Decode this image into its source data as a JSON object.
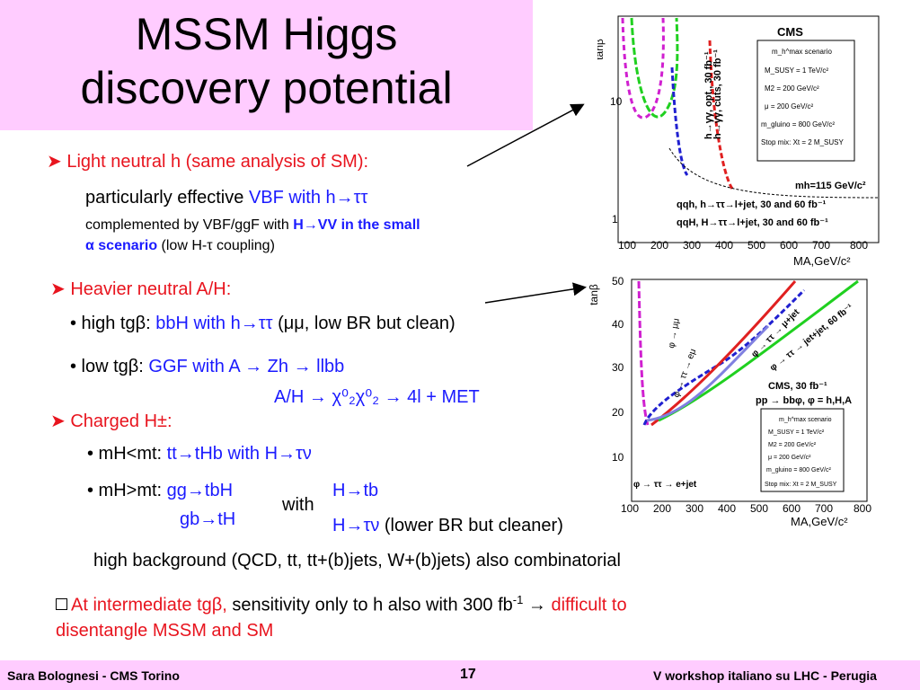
{
  "title": {
    "line1": "MSSM Higgs",
    "line2": "discovery potential"
  },
  "light": {
    "header": "Light neutral h (same analysis of SM):",
    "eff_prefix": "particularly effective ",
    "eff_blue": "VBF with h→ττ",
    "comp_prefix": "complemented by VBF/ggF with ",
    "comp_blue": "H→VV in the small",
    "alpha": "α scenario",
    "alpha_suffix": " (low H-τ coupling)"
  },
  "heavy": {
    "header": "Heavier neutral A/H:",
    "high_prefix": "• high tgβ: ",
    "high_blue": "bbH with h→ττ",
    "high_suffix": " (μμ, low BR but clean)",
    "low_prefix": "• low tgβ: ",
    "low_blue": "GGF with A → Zh → llbb",
    "low_line2": "A/H → χ⁰₂χ⁰₂ → 4l + MET"
  },
  "charged": {
    "header": "Charged H±:",
    "lt_prefix": "• mH<mt: ",
    "lt_blue": "tt→tHb with H→τν",
    "gt_prefix": "• mH>mt: ",
    "gt_blue1": "gg→tbH",
    "gt_blue2": "gb→tH",
    "with": "with",
    "ch1": "H→tb",
    "ch2": "H→τν",
    "ch2_suffix": " (lower BR but cleaner)",
    "background": "high background (QCD, tt, tt+(b)jets, W+(b)jets) also combinatorial"
  },
  "conclusion": {
    "red1": "At intermediate tgβ,",
    "mid": " sensitivity only to h also with 300 fb",
    "sup": "-1",
    "arrow": " → ",
    "red2": "difficult to",
    "line2": "disentangle MSSM and SM"
  },
  "footer": {
    "left": "Sara Bolognesi - CMS Torino",
    "page": "17",
    "right": "V workshop italiano su LHC - Perugia"
  },
  "plot1": {
    "ylabel": "tanβ",
    "xlabel": "MA,GeV/c²",
    "xticks": [
      "100",
      "200",
      "300",
      "400",
      "500",
      "600",
      "700",
      "800"
    ],
    "yticks": [
      "10",
      "1"
    ],
    "legend": [
      "CMS",
      "m_h^max scenario",
      "M_SUSY = 1 TeV/c²",
      "M2 = 200 GeV/c²",
      "μ = 200 GeV/c²",
      "m_gluino = 800 GeV/c²",
      "Stop mix: Xt = 2 M_SUSY"
    ],
    "mh_label": "mh=115 GeV/c²",
    "curve_labels": [
      "h→γγ, opt., 30 fb⁻¹",
      "h→γγ, cuts, 30 fb⁻¹",
      "qqh, h→ττ→l+jet, 30 and 60 fb⁻¹",
      "qqH, H→ττ→l+jet, 30 and 60 fb⁻¹"
    ]
  },
  "plot2": {
    "ylabel": "tanβ",
    "xlabel": "MA,GeV/c²",
    "xticks": [
      "100",
      "200",
      "300",
      "400",
      "500",
      "600",
      "700",
      "800"
    ],
    "yticks": [
      "50",
      "40",
      "30",
      "20",
      "10"
    ],
    "legend_top": [
      "CMS, 30 fb⁻¹",
      "pp → bbφ, φ = h,H,A"
    ],
    "legend": [
      "m_h^max scenario",
      "M_SUSY = 1 TeV/c²",
      "M2 = 200 GeV/c²",
      "μ = 200 GeV/c²",
      "m_gluino = 800 GeV/c²",
      "Stop mix: Xt = 2 M_SUSY"
    ],
    "curve_labels": [
      "φ → μμ",
      "φ → ττ → eμ",
      "φ → ττ → μ+jet",
      "φ → ττ → jet+jet, 60 fb⁻¹",
      "φ → ττ → e+jet"
    ]
  },
  "colors": {
    "title_bg": "#ffccff",
    "accent_red": "#e8141e",
    "accent_blue": "#1a1aff"
  }
}
